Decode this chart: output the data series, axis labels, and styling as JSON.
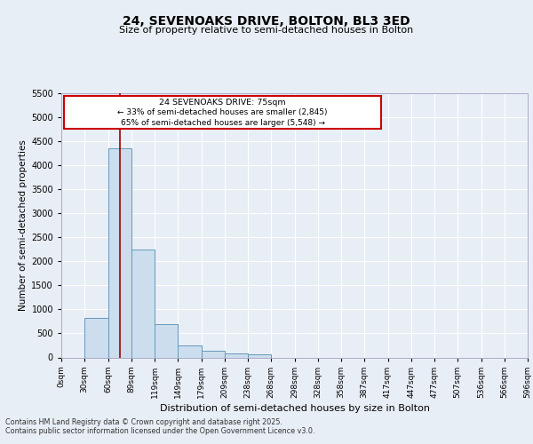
{
  "title": "24, SEVENOAKS DRIVE, BOLTON, BL3 3ED",
  "subtitle": "Size of property relative to semi-detached houses in Bolton",
  "xlabel": "Distribution of semi-detached houses by size in Bolton",
  "ylabel": "Number of semi-detached properties",
  "footer_line1": "Contains HM Land Registry data © Crown copyright and database right 2025.",
  "footer_line2": "Contains public sector information licensed under the Open Government Licence v3.0.",
  "bin_labels": [
    "0sqm",
    "30sqm",
    "60sqm",
    "89sqm",
    "119sqm",
    "149sqm",
    "179sqm",
    "209sqm",
    "238sqm",
    "268sqm",
    "298sqm",
    "328sqm",
    "358sqm",
    "387sqm",
    "417sqm",
    "447sqm",
    "477sqm",
    "507sqm",
    "536sqm",
    "566sqm",
    "596sqm"
  ],
  "bar_values": [
    0,
    830,
    4350,
    2240,
    690,
    255,
    130,
    85,
    70,
    0,
    0,
    0,
    0,
    0,
    0,
    0,
    0,
    0,
    0,
    0
  ],
  "bar_color": "#ccdded",
  "bar_edge_color": "#6699bb",
  "ylim": [
    0,
    5500
  ],
  "yticks": [
    0,
    500,
    1000,
    1500,
    2000,
    2500,
    3000,
    3500,
    4000,
    4500,
    5000,
    5500
  ],
  "red_line_x": 2.5,
  "annotation_title": "24 SEVENOAKS DRIVE: 75sqm",
  "annotation_left": "← 33% of semi-detached houses are smaller (2,845)",
  "annotation_right": "65% of semi-detached houses are larger (5,548) →",
  "background_color": "#e8eef5",
  "grid_color": "#ffffff",
  "ann_box_color": "#ffffff",
  "ann_border_color": "#cc0000"
}
